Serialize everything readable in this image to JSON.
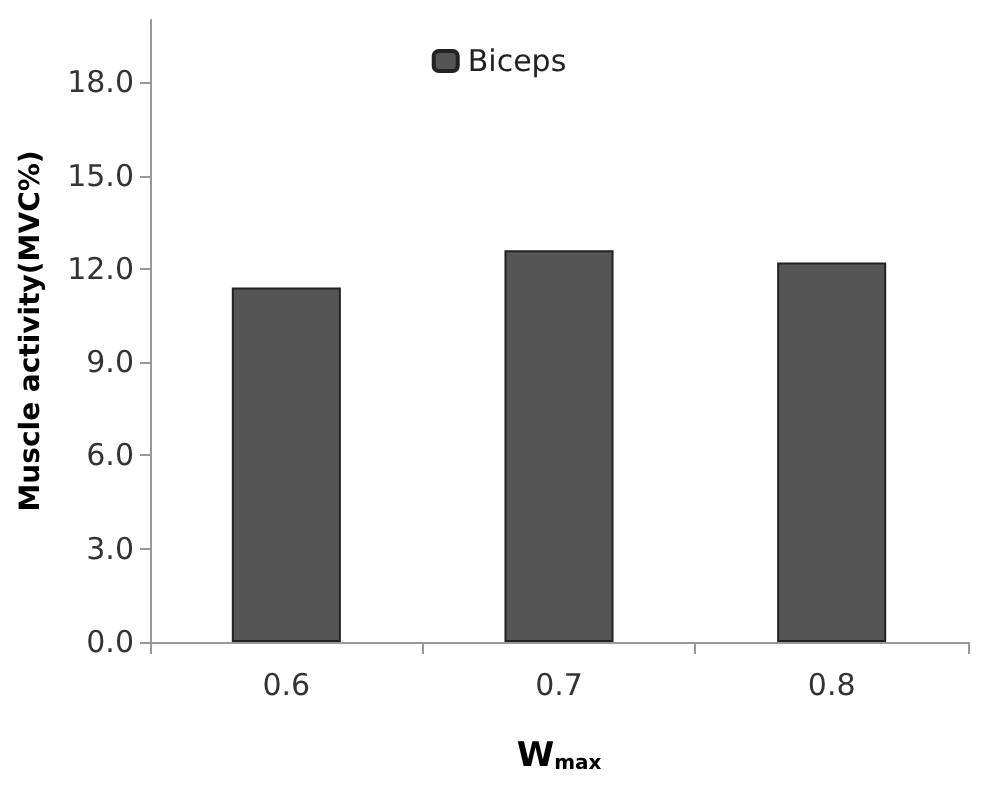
{
  "chart_data": {
    "type": "bar",
    "xlabel": "W$_{max}$",
    "ylabel": "Muscle activity(MVC%)",
    "categories": [
      "0.6",
      "0.7",
      "0.8"
    ],
    "series": [
      {
        "name": "Biceps",
        "color": "#555555",
        "values": [
          11.4,
          12.6,
          12.2
        ]
      }
    ],
    "ylim": [
      0,
      20
    ],
    "yticks": [
      {
        "value": 0,
        "label": "0.0"
      },
      {
        "value": 3,
        "label": "3.0"
      },
      {
        "value": 6,
        "label": "6.0"
      },
      {
        "value": 9,
        "label": "9.0"
      },
      {
        "value": 12,
        "label": "12.0"
      },
      {
        "value": 15,
        "label": "15.0"
      },
      {
        "value": 18,
        "label": "18.0"
      }
    ],
    "grid": false,
    "legend": "top"
  }
}
